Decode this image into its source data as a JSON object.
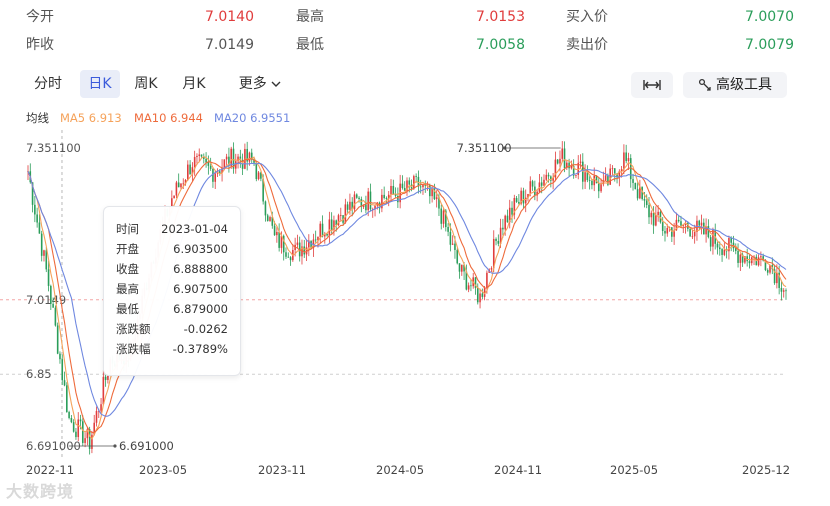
{
  "quote": {
    "open_label": "今开",
    "open_value": "7.0140",
    "prev_label": "昨收",
    "prev_value": "7.0149",
    "high_label": "最高",
    "high_value": "7.0153",
    "low_label": "最低",
    "low_value": "7.0058",
    "bid_label": "买入价",
    "bid_value": "7.0070",
    "ask_label": "卖出价",
    "ask_value": "7.0079"
  },
  "tabs": [
    "分时",
    "日K",
    "周K",
    "月K"
  ],
  "more_label": "更多",
  "advanced_label": "高级工具",
  "colors": {
    "up": "#e03c3c",
    "down": "#2a9d5a",
    "ma5": "#f5a25a",
    "ma10": "#ee6b3c",
    "ma20": "#6f88e0",
    "accent": "#3b5bdb"
  },
  "icons": {
    "chevron": "chevron-down-icon",
    "resize": "fit-width-icon",
    "tools": "tools-icon"
  },
  "legend": {
    "label": "均线",
    "ma5": "MA5 6.913",
    "ma10": "MA10 6.944",
    "ma20": "MA20 6.9551"
  },
  "tooltip": {
    "rows": [
      {
        "k": "时间",
        "v": "2023-01-04"
      },
      {
        "k": "开盘",
        "v": "6.903500"
      },
      {
        "k": "收盘",
        "v": "6.888800"
      },
      {
        "k": "最高",
        "v": "6.907500"
      },
      {
        "k": "最低",
        "v": "6.879000"
      },
      {
        "k": "涨跌额",
        "v": "-0.0262"
      },
      {
        "k": "涨跌幅",
        "v": "-0.3789%"
      }
    ]
  },
  "watermark": "大数跨境",
  "chart_data": {
    "type": "line",
    "subtype": "candlestick",
    "x": [
      "2022-11",
      "2022-12",
      "2023-01",
      "2023-02",
      "2023-03",
      "2023-04",
      "2023-05",
      "2023-06",
      "2023-07",
      "2023-08",
      "2023-09",
      "2023-10",
      "2023-11",
      "2023-12",
      "2024-01",
      "2024-02",
      "2024-03",
      "2024-04",
      "2024-05",
      "2024-06",
      "2024-07",
      "2024-08",
      "2024-09",
      "2024-10",
      "2024-11",
      "2024-12",
      "2025-01",
      "2025-02",
      "2025-03",
      "2025-04",
      "2025-05",
      "2025-06",
      "2025-07",
      "2025-08",
      "2025-09",
      "2025-10",
      "2025-11",
      "2025-12"
    ],
    "series": [
      {
        "values": [
          7.3,
          7.05,
          6.75,
          6.7,
          6.88,
          6.9,
          7.1,
          7.24,
          7.32,
          7.3,
          7.33,
          7.32,
          7.15,
          7.12,
          7.16,
          7.2,
          7.23,
          7.24,
          7.25,
          7.27,
          7.22,
          7.08,
          7.02,
          7.18,
          7.24,
          7.28,
          7.33,
          7.3,
          7.26,
          7.33,
          7.22,
          7.17,
          7.18,
          7.16,
          7.13,
          7.11,
          7.1,
          7.03
        ]
      }
    ],
    "x_ticks": [
      "2022-11",
      "2023-05",
      "2023-11",
      "2024-05",
      "2024-11",
      "2025-05",
      "2025-12"
    ],
    "y_ticks": [
      "7.351100",
      "7.0149",
      "6.85",
      "6.691000"
    ],
    "annotations": [
      {
        "text": "7.351100",
        "x": "2025-01",
        "y": 7.3511
      },
      {
        "text": "6.691000",
        "x": "2023-01",
        "y": 6.691
      }
    ],
    "reference_line": {
      "value": 7.0149,
      "label": "7.0149"
    },
    "ylim": [
      6.691,
      7.3511
    ]
  }
}
